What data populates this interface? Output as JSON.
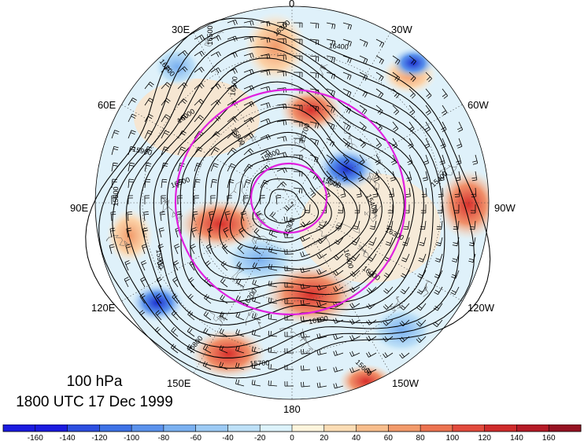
{
  "map": {
    "level": "100 hPa",
    "valid_time": "1800 UTC 17 Dec 1999",
    "longitude_labels": {
      "top": "0",
      "upper_left": "30E",
      "upper_right": "30W",
      "left_upper": "60E",
      "right_upper": "60W",
      "left": "90E",
      "right": "90W",
      "left_lower": "120E",
      "right_lower": "120W",
      "lower_left": "150E",
      "lower_right": "150W",
      "bottom": "180"
    },
    "contour_labels": [
      "16500",
      "16300",
      "16400",
      "16200",
      "16100",
      "16000",
      "15900",
      "15800",
      "15700",
      "15600",
      "15500",
      "15400",
      "15300"
    ],
    "colorbar": {
      "tick_labels": [
        "-160",
        "-140",
        "-120",
        "-100",
        "-80",
        "-60",
        "-40",
        "-20",
        "0",
        "20",
        "40",
        "60",
        "80",
        "100",
        "120",
        "140",
        "160"
      ],
      "colors": [
        "#1a1adf",
        "#2c4ee0",
        "#3d72e6",
        "#5a92ec",
        "#7ab0f0",
        "#9ccaf4",
        "#bde0f7",
        "#dcf2fb",
        "#fdf4dc",
        "#fbdcb4",
        "#f7bd8c",
        "#f29a6a",
        "#ec7350",
        "#e24a3c",
        "#cf2b2b",
        "#b51a26",
        "#961222"
      ]
    },
    "accent_ring_color": "#e020e0"
  }
}
